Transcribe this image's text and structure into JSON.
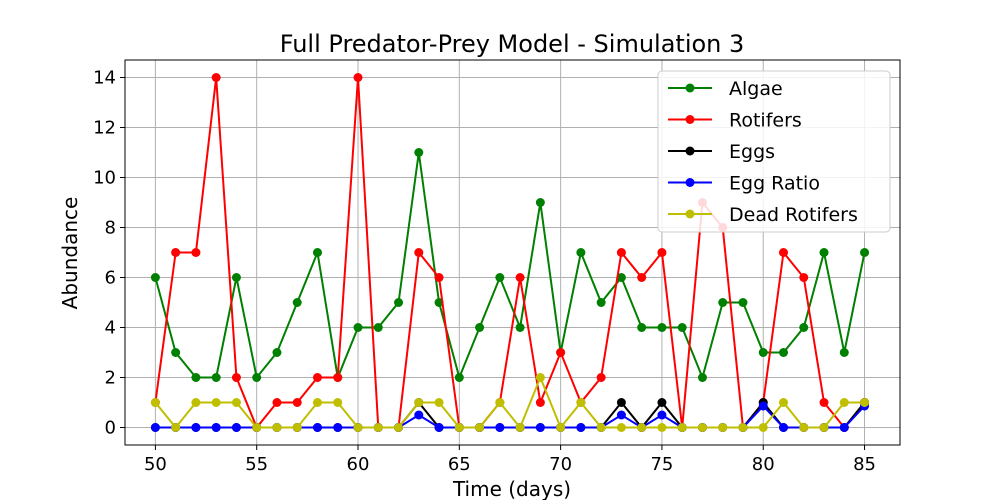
{
  "chart_data": {
    "type": "line",
    "title": "Full Predator-Prey Model - Simulation 3",
    "xlabel": "Time (days)",
    "ylabel": "Abundance",
    "xlim": [
      48.5,
      86.75
    ],
    "ylim": [
      -0.7,
      14.7
    ],
    "xticks": [
      50,
      55,
      60,
      65,
      70,
      75,
      80,
      85
    ],
    "yticks": [
      0,
      2,
      4,
      6,
      8,
      10,
      12,
      14
    ],
    "grid": true,
    "legend_position": "top-right",
    "x": [
      50,
      51,
      52,
      53,
      54,
      55,
      56,
      57,
      58,
      59,
      60,
      61,
      62,
      63,
      64,
      65,
      66,
      67,
      68,
      69,
      70,
      71,
      72,
      73,
      74,
      75,
      76,
      77,
      78,
      79,
      80,
      81,
      82,
      83,
      84,
      85
    ],
    "series": [
      {
        "name": "Algae",
        "color": "#008000",
        "values": [
          6,
          3,
          2,
          2,
          6,
          2,
          3,
          5,
          7,
          2,
          4,
          4,
          5,
          11,
          5,
          2,
          4,
          6,
          4,
          9,
          3,
          7,
          5,
          6,
          4,
          4,
          4,
          2,
          5,
          5,
          3,
          3,
          4,
          7,
          3,
          7
        ]
      },
      {
        "name": "Rotifers",
        "color": "#ff0000",
        "values": [
          1,
          7,
          7,
          14,
          2,
          0,
          1,
          1,
          2,
          2,
          14,
          0,
          0,
          7,
          6,
          0,
          0,
          1,
          6,
          1,
          3,
          1,
          2,
          7,
          6,
          7,
          0,
          9,
          8,
          0,
          1,
          7,
          6,
          1,
          0,
          1
        ]
      },
      {
        "name": "Eggs",
        "color": "#000000",
        "values": [
          0,
          0,
          0,
          0,
          0,
          0,
          0,
          0,
          0,
          0,
          0,
          0,
          0,
          1,
          0,
          0,
          0,
          0,
          0,
          0,
          0,
          0,
          0,
          1,
          0,
          1,
          0,
          0,
          0,
          0,
          1,
          0,
          0,
          0,
          0,
          1
        ]
      },
      {
        "name": "Egg Ratio",
        "color": "#0000ff",
        "values": [
          0,
          0,
          0,
          0,
          0,
          0,
          0,
          0,
          0,
          0,
          0,
          0,
          0,
          0.5,
          0,
          0,
          0,
          0,
          0,
          0,
          0,
          0,
          0,
          0.5,
          0,
          0.5,
          0,
          0,
          0,
          0,
          0.86,
          0,
          0,
          0,
          0,
          0.86
        ]
      },
      {
        "name": "Dead Rotifers",
        "color": "#bfbf00",
        "values": [
          1,
          0,
          1,
          1,
          1,
          0,
          0,
          0,
          1,
          1,
          0,
          0,
          0,
          1,
          1,
          0,
          0,
          1,
          0,
          2,
          0,
          1,
          0,
          0,
          0,
          0,
          0,
          0,
          0,
          0,
          0,
          1,
          0,
          0,
          1,
          1
        ]
      }
    ]
  }
}
